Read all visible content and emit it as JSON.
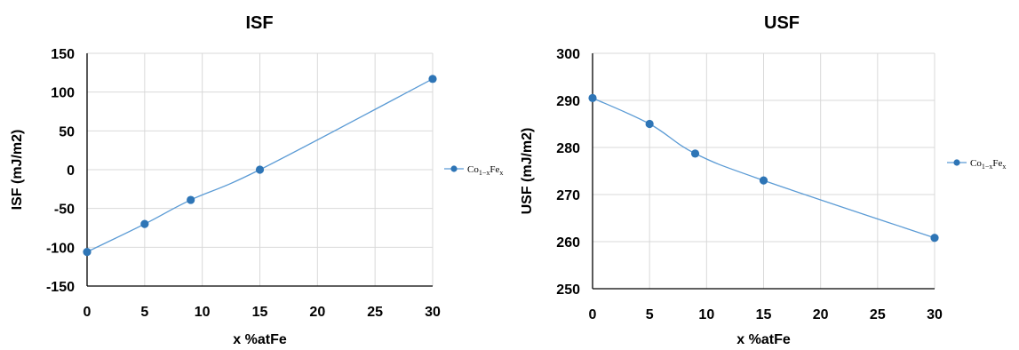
{
  "chart_data": [
    {
      "type": "line",
      "title": "ISF",
      "xlabel": "x %atFe",
      "ylabel": "ISF (mJ/m2)",
      "xlim": [
        0,
        30
      ],
      "ylim": [
        -150,
        150
      ],
      "xticks": [
        "0",
        "5",
        "10",
        "15",
        "20",
        "25",
        "30"
      ],
      "yticks": [
        "150",
        "100",
        "50",
        "0",
        "-50",
        "-100",
        "-150"
      ],
      "grid": true,
      "legend_position": "right",
      "series": [
        {
          "name_main": "Co",
          "name_sub": "1−x",
          "name_main2": "Fe",
          "name_sub2": "x",
          "x": [
            0,
            5,
            9,
            15,
            30
          ],
          "y": [
            -106,
            -70,
            -39,
            0,
            117
          ],
          "color": "#2e75b6"
        }
      ]
    },
    {
      "type": "line",
      "title": "USF",
      "xlabel": "x %atFe",
      "ylabel": "USF (mJ/m2)",
      "xlim": [
        0,
        30
      ],
      "ylim": [
        250,
        300
      ],
      "xticks": [
        "0",
        "5",
        "10",
        "15",
        "20",
        "25",
        "30"
      ],
      "yticks": [
        "300",
        "290",
        "280",
        "270",
        "260",
        "250"
      ],
      "grid": true,
      "legend_position": "right",
      "series": [
        {
          "name_main": "Co",
          "name_sub": "1−x",
          "name_main2": "Fe",
          "name_sub2": "x",
          "x": [
            0,
            5,
            9,
            15,
            30
          ],
          "y": [
            290.5,
            285,
            278.7,
            273,
            260.8
          ],
          "color": "#2e75b6"
        }
      ]
    }
  ]
}
